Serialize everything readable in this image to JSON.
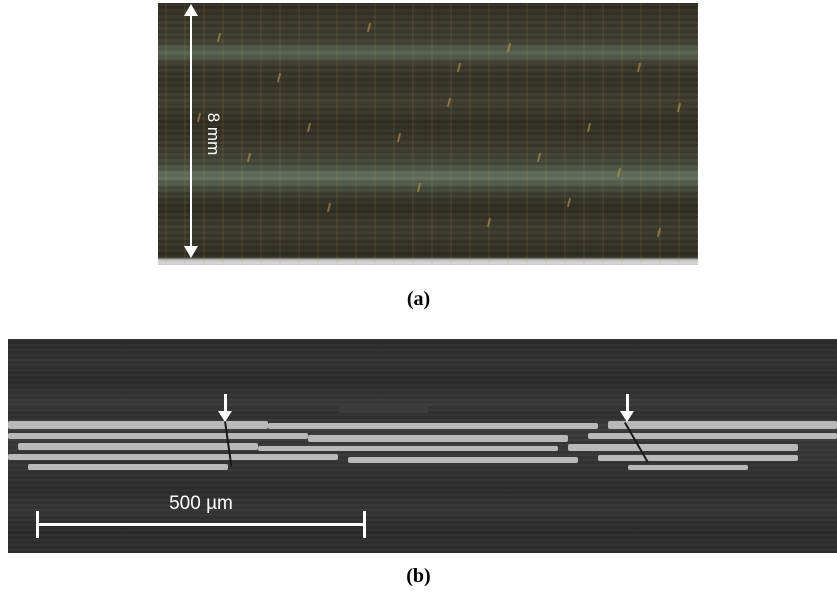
{
  "panel_a": {
    "dimension_label": "8 mm",
    "caption": "(a)"
  },
  "panel_b": {
    "scale_label": "500 µm",
    "caption": "(b)"
  },
  "colors": {
    "arrow": "#ffffff",
    "ply_highlight": "#b9b9b9",
    "sem_background": "#303030"
  }
}
